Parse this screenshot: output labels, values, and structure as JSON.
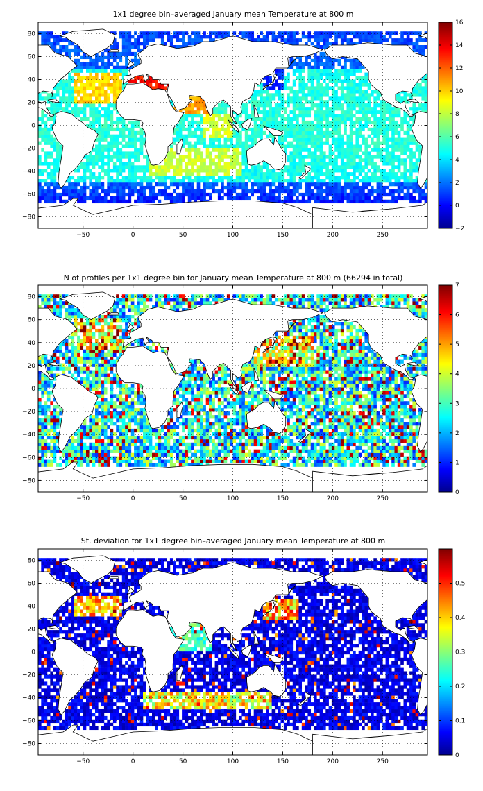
{
  "chart_data": [
    {
      "type": "heatmap",
      "title": "1x1 degree bin–averaged January mean Temperature at 800 m",
      "xlabel": "",
      "ylabel": "",
      "xlim": [
        -95,
        295
      ],
      "ylim": [
        -90,
        90
      ],
      "xticks": [
        "−50",
        "0",
        "50",
        "100",
        "150",
        "200",
        "250"
      ],
      "yticks": [
        "80",
        "60",
        "40",
        "20",
        "0",
        "−20",
        "−40",
        "−60",
        "−80"
      ],
      "colorbar": {
        "min": -2,
        "max": 16,
        "ticks": [
          "16",
          "14",
          "12",
          "10",
          "8",
          "6",
          "4",
          "2",
          "0",
          "−2"
        ]
      },
      "grid": true
    },
    {
      "type": "heatmap",
      "title": "N of profiles per 1x1 degree bin for January mean Temperature at 800 m (66294 in total)",
      "xlabel": "",
      "ylabel": "",
      "xlim": [
        -95,
        295
      ],
      "ylim": [
        -90,
        90
      ],
      "xticks": [
        "−50",
        "0",
        "50",
        "100",
        "150",
        "200",
        "250"
      ],
      "yticks": [
        "80",
        "60",
        "40",
        "20",
        "0",
        "−20",
        "−40",
        "−60",
        "−80"
      ],
      "colorbar": {
        "min": 0,
        "max": 7,
        "ticks": [
          "7",
          "6",
          "5",
          "4",
          "3",
          "2",
          "1",
          "0"
        ]
      },
      "grid": true
    },
    {
      "type": "heatmap",
      "title": "St. deviation for 1x1 degree bin–averaged January mean Temperature at 800 m",
      "xlabel": "",
      "ylabel": "",
      "xlim": [
        -95,
        295
      ],
      "ylim": [
        -90,
        90
      ],
      "xticks": [
        "−50",
        "0",
        "50",
        "100",
        "150",
        "200",
        "250"
      ],
      "yticks": [
        "80",
        "60",
        "40",
        "20",
        "0",
        "−20",
        "−40",
        "−60",
        "−80"
      ],
      "colorbar": {
        "min": 0,
        "max": 0.6,
        "ticks": [
          "0.5",
          "0.4",
          "0.3",
          "0.2",
          "0.1",
          "0"
        ]
      },
      "grid": true
    }
  ],
  "colormap": "jet"
}
